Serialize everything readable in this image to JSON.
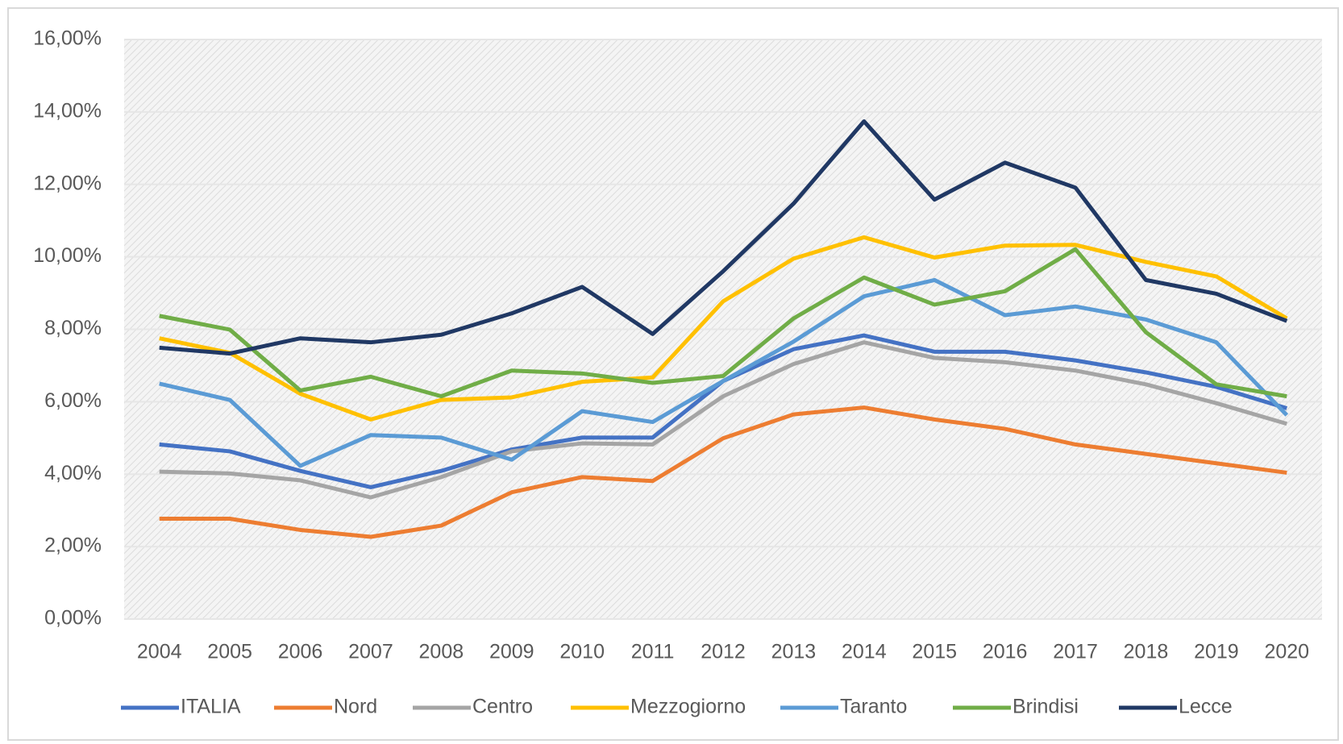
{
  "chart_data": {
    "type": "line",
    "categories": [
      "2004",
      "2005",
      "2006",
      "2007",
      "2008",
      "2009",
      "2010",
      "2011",
      "2012",
      "2013",
      "2014",
      "2015",
      "2016",
      "2017",
      "2018",
      "2019",
      "2020"
    ],
    "series": [
      {
        "name": "ITALIA",
        "color": "#4472c4",
        "values": [
          4.82,
          4.63,
          4.09,
          3.64,
          4.09,
          4.68,
          5.01,
          5.01,
          6.57,
          7.45,
          7.83,
          7.38,
          7.38,
          7.14,
          6.81,
          6.41,
          5.82
        ]
      },
      {
        "name": "Nord",
        "color": "#ed7d31",
        "values": [
          2.77,
          2.77,
          2.46,
          2.27,
          2.58,
          3.5,
          3.92,
          3.81,
          4.99,
          5.65,
          5.84,
          5.51,
          5.25,
          4.82,
          4.56,
          4.3,
          4.04
        ]
      },
      {
        "name": "Centro",
        "color": "#a5a5a5",
        "values": [
          4.07,
          4.02,
          3.83,
          3.36,
          3.92,
          4.63,
          4.85,
          4.82,
          6.15,
          7.04,
          7.64,
          7.21,
          7.09,
          6.86,
          6.48,
          5.96,
          5.39
        ]
      },
      {
        "name": "Mezzogiorno",
        "color": "#ffc000",
        "values": [
          7.75,
          7.35,
          6.22,
          5.51,
          6.05,
          6.12,
          6.55,
          6.67,
          8.77,
          9.95,
          10.54,
          9.98,
          10.31,
          10.33,
          9.86,
          9.46,
          8.3
        ]
      },
      {
        "name": "Taranto",
        "color": "#5b9bd5",
        "values": [
          6.5,
          6.05,
          4.23,
          5.08,
          5.01,
          4.4,
          5.74,
          5.44,
          6.57,
          7.66,
          8.91,
          9.36,
          8.39,
          8.63,
          8.27,
          7.64,
          5.63
        ]
      },
      {
        "name": "Brindisi",
        "color": "#70ad47",
        "values": [
          8.37,
          7.99,
          6.31,
          6.69,
          6.15,
          6.86,
          6.78,
          6.52,
          6.71,
          8.3,
          9.43,
          8.68,
          9.05,
          10.21,
          7.92,
          6.48,
          6.15
        ]
      },
      {
        "name": "Lecce",
        "color": "#203864",
        "values": [
          7.49,
          7.33,
          7.75,
          7.64,
          7.85,
          8.44,
          9.17,
          7.87,
          9.6,
          11.47,
          13.74,
          11.58,
          12.6,
          11.91,
          9.36,
          8.98,
          8.23
        ]
      }
    ],
    "ylim": [
      0,
      16
    ],
    "yticks": [
      {
        "value": 0,
        "label": "0,00%"
      },
      {
        "value": 2,
        "label": "2,00%"
      },
      {
        "value": 4,
        "label": "4,00%"
      },
      {
        "value": 6,
        "label": "6,00%"
      },
      {
        "value": 8,
        "label": "8,00%"
      },
      {
        "value": 10,
        "label": "10,00%"
      },
      {
        "value": 12,
        "label": "12,00%"
      },
      {
        "value": 14,
        "label": "14,00%"
      },
      {
        "value": 16,
        "label": "16,00%"
      }
    ],
    "grid": true,
    "legend": "bottom"
  }
}
